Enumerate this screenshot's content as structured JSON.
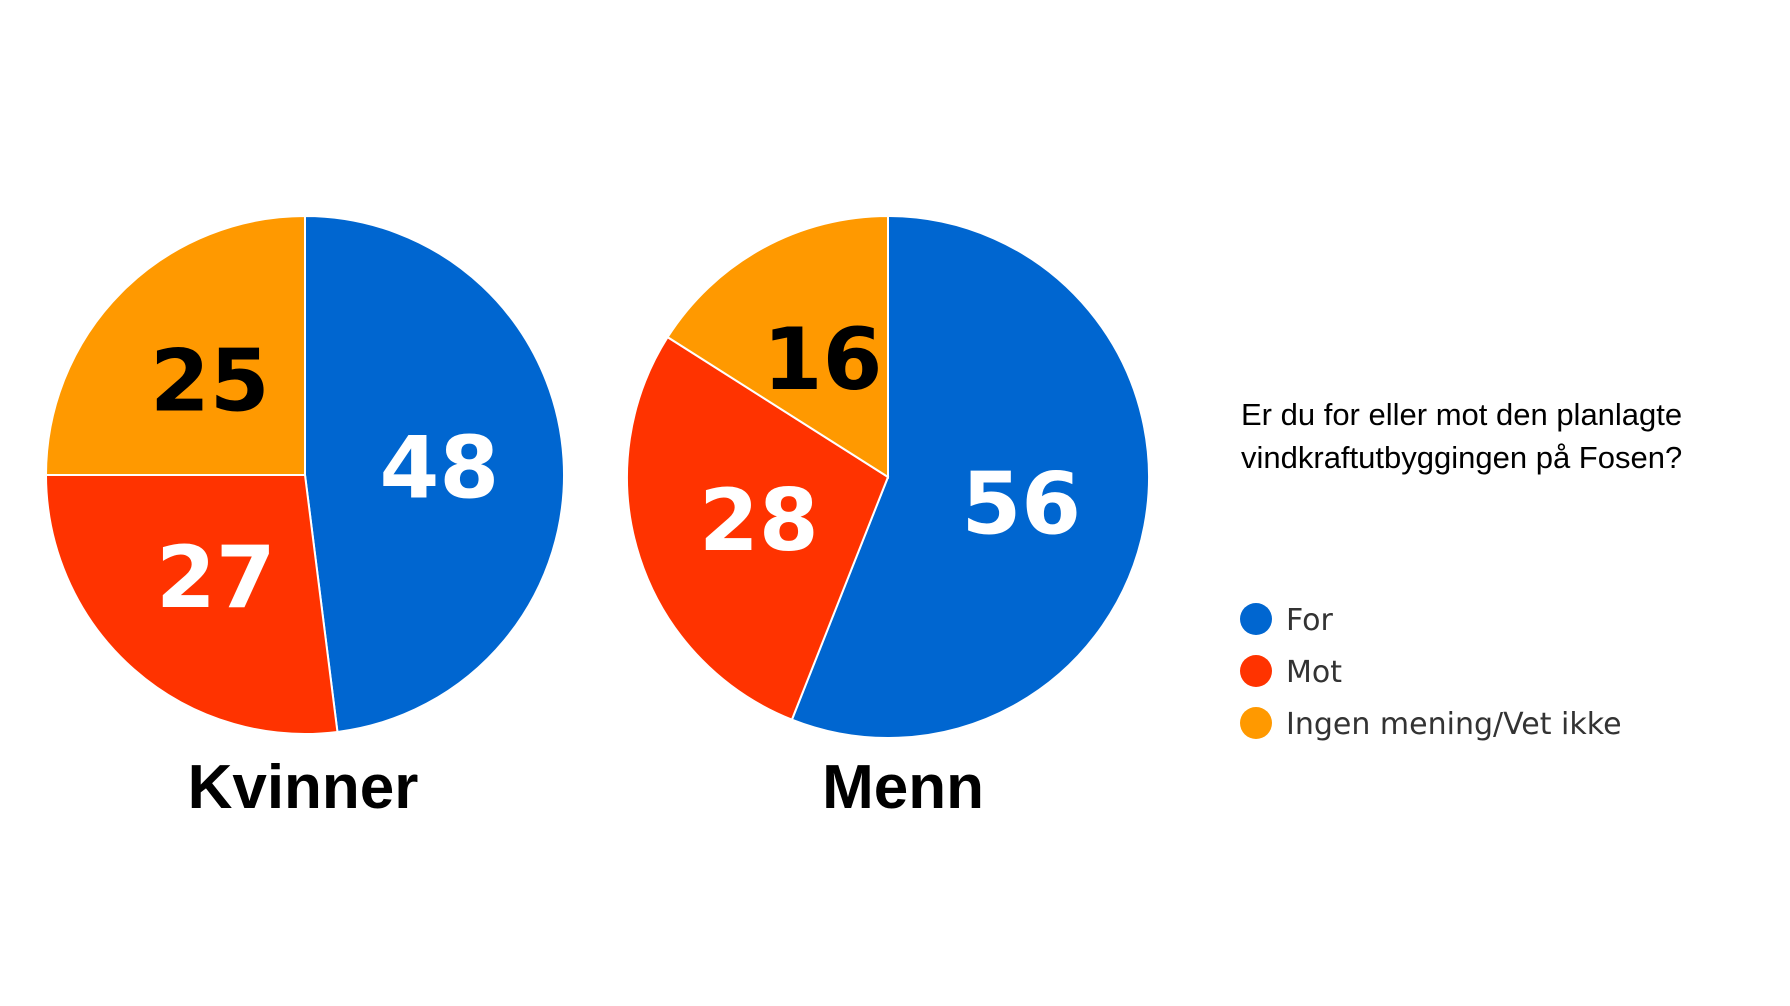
{
  "chart_data": {
    "type": "pie",
    "question_lines": [
      "Er du for eller mot den planlagte",
      "vindkraftutbyggingen på Fosen?"
    ],
    "categories": [
      "For",
      "Mot",
      "Ingen mening/Vet ikke"
    ],
    "colors": [
      "#0066d0",
      "#ff3300",
      "#ff9900"
    ],
    "label_colors": [
      "#ffffff",
      "#ffffff",
      "#000000"
    ],
    "legend_placement": "right",
    "pies": [
      {
        "title": "Kvinner",
        "values": [
          48,
          27,
          25
        ]
      },
      {
        "title": "Menn",
        "values": [
          56,
          28,
          16
        ]
      }
    ]
  }
}
